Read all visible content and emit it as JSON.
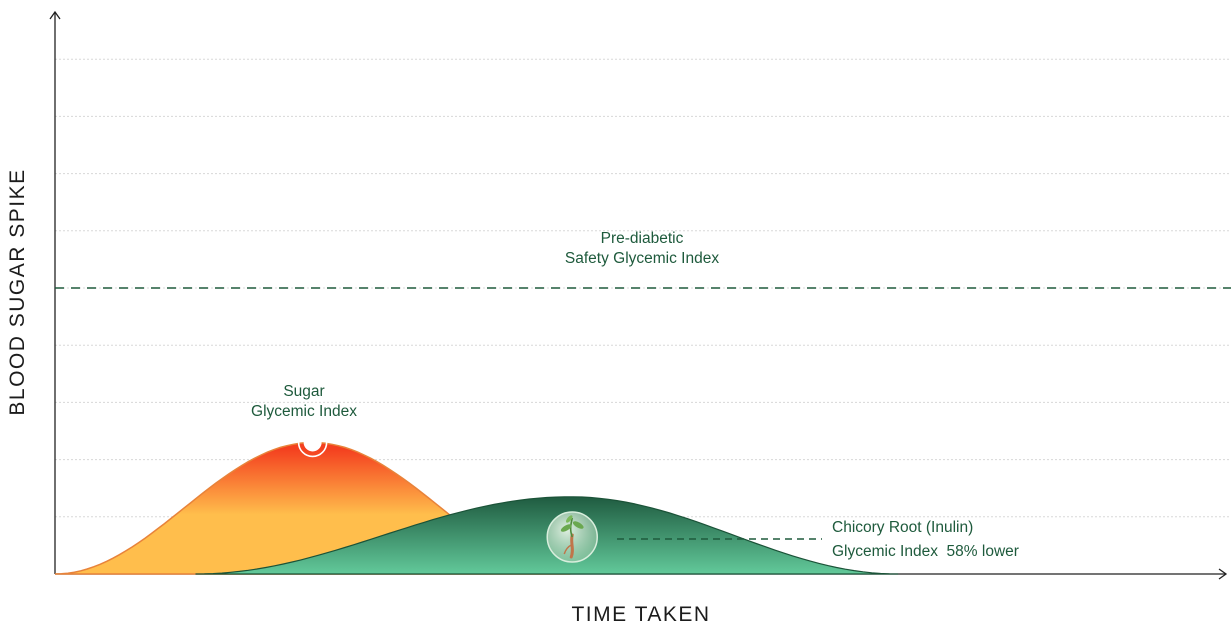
{
  "chart_data": {
    "type": "area",
    "xlabel": "TIME TAKEN",
    "ylabel": "BLOOD SUGAR SPIKE",
    "grid": true,
    "threshold": {
      "label_lines": [
        "Pre-diabetic",
        "Safety Glycemic Index"
      ],
      "value": 5
    },
    "series": [
      {
        "name": "Sugar Glycemic Index",
        "label_lines": [
          "Sugar",
          "Glycemic Index"
        ],
        "peak_x": 0.22,
        "peak_y": 2.3,
        "start_x": 0.0,
        "end_x": 0.44
      },
      {
        "name": "Chicory Root (Inulin) Glycemic Index 58% lower",
        "label_lines": [
          "Chicory Root (Inulin)",
          "Glycemic Index  58% lower"
        ],
        "peak_x": 0.44,
        "peak_y": 1.35,
        "start_x": 0.12,
        "end_x": 0.72
      }
    ],
    "xlim": [
      0,
      1
    ],
    "ylim": [
      0,
      9
    ]
  },
  "colors": {
    "sugar_top": "#f4401f",
    "sugar_bottom": "#ffbe4c",
    "sugar_stroke": "#e8833a",
    "chicory_top": "#1f5b40",
    "chicory_bottom": "#62c99a",
    "chicory_stroke": "#1b5338",
    "annotation": "#1e5a3c",
    "grid": "#d8d8d8",
    "axis": "#222222"
  },
  "icons": {
    "sugar_marker": "sugar-peak-marker-icon",
    "chicory_marker": "chicory-root-plant-icon"
  }
}
